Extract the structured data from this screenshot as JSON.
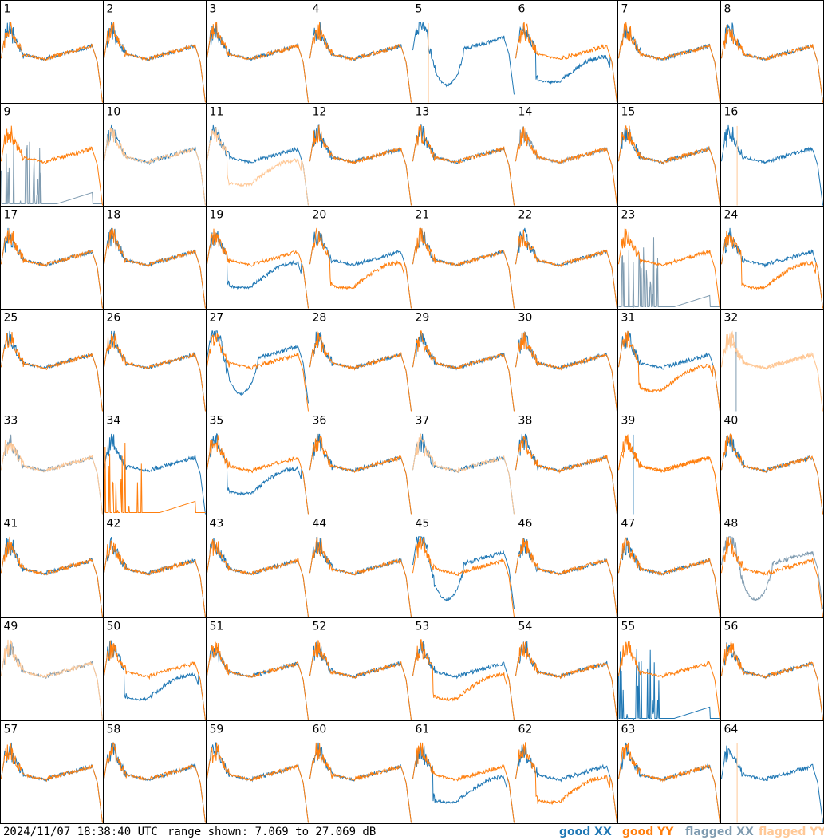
{
  "colors": {
    "good_xx": "#1f77b4",
    "good_yy": "#ff7f0e",
    "flagged_xx": "#7f9bb0",
    "flagged_yy": "#ffc896",
    "grid_line": "#000000"
  },
  "chart_data": {
    "type": "line",
    "unit": "dB",
    "ylim": [
      7.069,
      27.069
    ],
    "grid": {
      "rows": 8,
      "cols": 8
    },
    "legend": [
      "good XX",
      "good YY",
      "flagged XX",
      "flagged YY"
    ],
    "legend_position": "bottom-right",
    "panels": [
      {
        "label": "1",
        "xx": "good",
        "yy": "good",
        "shape": "normal"
      },
      {
        "label": "2",
        "xx": "good",
        "yy": "good",
        "shape": "normal"
      },
      {
        "label": "3",
        "xx": "good",
        "yy": "good",
        "shape": "normal"
      },
      {
        "label": "4",
        "xx": "good",
        "yy": "good",
        "shape": "normal"
      },
      {
        "label": "5",
        "xx": "good",
        "yy": "flagged",
        "shape": "xx-dip"
      },
      {
        "label": "6",
        "xx": "good",
        "yy": "good",
        "shape": "xx-low"
      },
      {
        "label": "7",
        "xx": "good",
        "yy": "good",
        "shape": "normal"
      },
      {
        "label": "8",
        "xx": "good",
        "yy": "good",
        "shape": "normal"
      },
      {
        "label": "9",
        "xx": "flagged",
        "yy": "good",
        "shape": "xx-spikes"
      },
      {
        "label": "10",
        "xx": "good",
        "yy": "flagged",
        "shape": "normal"
      },
      {
        "label": "11",
        "xx": "good",
        "yy": "flagged",
        "shape": "yy-low"
      },
      {
        "label": "12",
        "xx": "good",
        "yy": "good",
        "shape": "normal"
      },
      {
        "label": "13",
        "xx": "good",
        "yy": "good",
        "shape": "normal"
      },
      {
        "label": "14",
        "xx": "flagged",
        "yy": "good",
        "shape": "normal"
      },
      {
        "label": "15",
        "xx": "good",
        "yy": "good",
        "shape": "normal"
      },
      {
        "label": "16",
        "xx": "good",
        "yy": "flagged",
        "shape": "yy-spike"
      },
      {
        "label": "17",
        "xx": "good",
        "yy": "good",
        "shape": "normal"
      },
      {
        "label": "18",
        "xx": "good",
        "yy": "good",
        "shape": "normal"
      },
      {
        "label": "19",
        "xx": "good",
        "yy": "good",
        "shape": "xx-low"
      },
      {
        "label": "20",
        "xx": "good",
        "yy": "good",
        "shape": "yy-low"
      },
      {
        "label": "21",
        "xx": "good",
        "yy": "good",
        "shape": "normal"
      },
      {
        "label": "22",
        "xx": "good",
        "yy": "good",
        "shape": "normal"
      },
      {
        "label": "23",
        "xx": "flagged",
        "yy": "good",
        "shape": "xx-spikes"
      },
      {
        "label": "24",
        "xx": "good",
        "yy": "good",
        "shape": "yy-low"
      },
      {
        "label": "25",
        "xx": "good",
        "yy": "good",
        "shape": "normal"
      },
      {
        "label": "26",
        "xx": "good",
        "yy": "good",
        "shape": "normal"
      },
      {
        "label": "27",
        "xx": "good",
        "yy": "good",
        "shape": "xx-dip"
      },
      {
        "label": "28",
        "xx": "good",
        "yy": "good",
        "shape": "normal"
      },
      {
        "label": "29",
        "xx": "good",
        "yy": "good",
        "shape": "normal"
      },
      {
        "label": "30",
        "xx": "good",
        "yy": "good",
        "shape": "normal"
      },
      {
        "label": "31",
        "xx": "good",
        "yy": "good",
        "shape": "yy-low"
      },
      {
        "label": "32",
        "xx": "flagged",
        "yy": "flagged",
        "shape": "yy-only"
      },
      {
        "label": "33",
        "xx": "flagged",
        "yy": "flagged",
        "shape": "normal"
      },
      {
        "label": "34",
        "xx": "good",
        "yy": "good",
        "shape": "yy-spikes"
      },
      {
        "label": "35",
        "xx": "good",
        "yy": "good",
        "shape": "xx-low"
      },
      {
        "label": "36",
        "xx": "good",
        "yy": "good",
        "shape": "normal"
      },
      {
        "label": "37",
        "xx": "good",
        "yy": "flagged",
        "shape": "normal"
      },
      {
        "label": "38",
        "xx": "good",
        "yy": "good",
        "shape": "normal"
      },
      {
        "label": "39",
        "xx": "good",
        "yy": "good",
        "shape": "yy-only"
      },
      {
        "label": "40",
        "xx": "good",
        "yy": "good",
        "shape": "normal"
      },
      {
        "label": "41",
        "xx": "good",
        "yy": "good",
        "shape": "normal"
      },
      {
        "label": "42",
        "xx": "good",
        "yy": "good",
        "shape": "normal"
      },
      {
        "label": "43",
        "xx": "good",
        "yy": "good",
        "shape": "normal"
      },
      {
        "label": "44",
        "xx": "good",
        "yy": "good",
        "shape": "normal"
      },
      {
        "label": "45",
        "xx": "good",
        "yy": "good",
        "shape": "xx-dip"
      },
      {
        "label": "46",
        "xx": "good",
        "yy": "good",
        "shape": "normal"
      },
      {
        "label": "47",
        "xx": "good",
        "yy": "good",
        "shape": "normal"
      },
      {
        "label": "48",
        "xx": "flagged",
        "yy": "good",
        "shape": "xx-dip"
      },
      {
        "label": "49",
        "xx": "flagged",
        "yy": "flagged",
        "shape": "normal"
      },
      {
        "label": "50",
        "xx": "good",
        "yy": "good",
        "shape": "xx-low"
      },
      {
        "label": "51",
        "xx": "good",
        "yy": "good",
        "shape": "normal"
      },
      {
        "label": "52",
        "xx": "good",
        "yy": "good",
        "shape": "normal"
      },
      {
        "label": "53",
        "xx": "good",
        "yy": "good",
        "shape": "yy-low"
      },
      {
        "label": "54",
        "xx": "good",
        "yy": "good",
        "shape": "normal"
      },
      {
        "label": "55",
        "xx": "good",
        "yy": "good",
        "shape": "xx-spikes"
      },
      {
        "label": "56",
        "xx": "good",
        "yy": "good",
        "shape": "normal"
      },
      {
        "label": "57",
        "xx": "good",
        "yy": "good",
        "shape": "normal"
      },
      {
        "label": "58",
        "xx": "good",
        "yy": "good",
        "shape": "normal"
      },
      {
        "label": "59",
        "xx": "good",
        "yy": "good",
        "shape": "normal"
      },
      {
        "label": "60",
        "xx": "good",
        "yy": "good",
        "shape": "normal"
      },
      {
        "label": "61",
        "xx": "good",
        "yy": "good",
        "shape": "xx-low"
      },
      {
        "label": "62",
        "xx": "good",
        "yy": "good",
        "shape": "yy-low"
      },
      {
        "label": "63",
        "xx": "good",
        "yy": "good",
        "shape": "normal"
      },
      {
        "label": "64",
        "xx": "good",
        "yy": "flagged",
        "shape": "yy-spike"
      }
    ]
  },
  "footer": {
    "timestamp": "2024/11/07 18:38:40 UTC",
    "range_text": "range shown: 7.069 to 27.069 dB",
    "legend": {
      "good_xx": "good XX",
      "good_yy": "good YY",
      "flagged_xx": "flagged XX",
      "flagged_yy": "flagged YY"
    }
  }
}
